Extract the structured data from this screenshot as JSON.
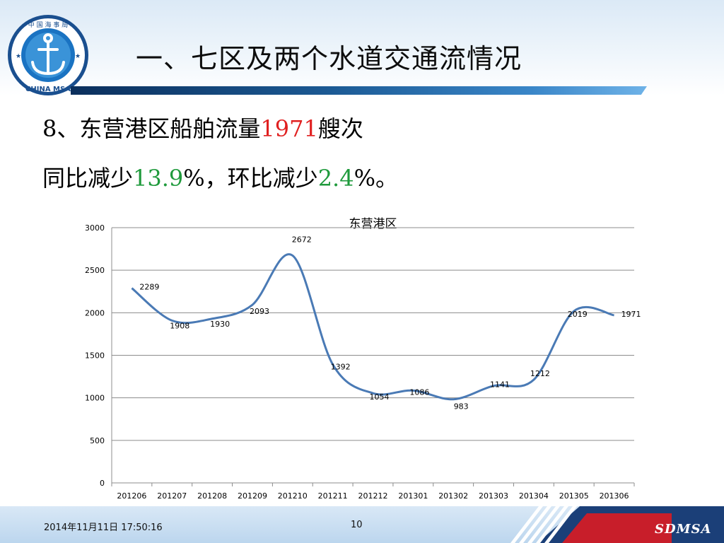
{
  "header": {
    "title": "一、七区及两个水道交通流情况",
    "logo_top_text": "中 国 海 事 局",
    "logo_bottom_text": "CHINA MSA"
  },
  "summary": {
    "line1_prefix": "8、东营港区船舶流量",
    "line1_value": "1971",
    "line1_suffix": "艘次",
    "line2_prefix": "同比减少",
    "line2_yoy": "13.9",
    "line2_mid": "%，环比减少",
    "line2_mom": "2.4",
    "line2_suffix": "%。"
  },
  "chart_data": {
    "type": "line",
    "title": "东营港区",
    "categories": [
      "201206",
      "201207",
      "201208",
      "201209",
      "201210",
      "201211",
      "201212",
      "201301",
      "201302",
      "201303",
      "201304",
      "201305",
      "201306"
    ],
    "series": [
      {
        "values": [
          2289,
          1908,
          1930,
          2093,
          2672,
          1392,
          1054,
          1086,
          983,
          1141,
          1212,
          2019,
          1971
        ]
      }
    ],
    "ylim": [
      0,
      3000
    ],
    "yticks": [
      0,
      500,
      1000,
      1500,
      2000,
      2500,
      3000
    ],
    "grid": true,
    "line_color": "#4a7ab5",
    "smooth": true
  },
  "footer": {
    "date": "2014年11月11日  17:50:16",
    "page": "10",
    "brand": "SDMSA"
  },
  "colors": {
    "accent_red": "#e02020",
    "accent_green": "#1f9a3c",
    "header_bar": "#1c5a94"
  }
}
